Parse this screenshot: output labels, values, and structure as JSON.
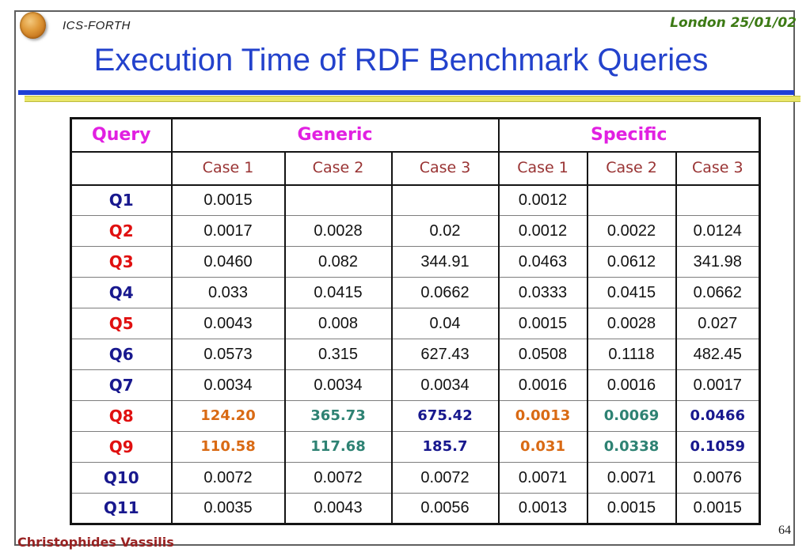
{
  "header": {
    "org": "ICS-FORTH",
    "date": "London 25/01/02",
    "title": "Execution Time of RDF Benchmark Queries"
  },
  "footer": {
    "author": "Christophides Vassilis",
    "page_number": "64"
  },
  "colors": {
    "title_blue": "#2342cc",
    "magenta": "#e120e1",
    "brown": "#993333",
    "navy": "#18188e",
    "red": "#e01010",
    "orange": "#d96a14",
    "teal": "#2e8273",
    "date_green": "#3c7a14",
    "footer_red": "#992222",
    "bar_blue": "#1f3fd4",
    "bar_yellow": "#e9e668"
  },
  "table": {
    "query_header": "Query",
    "group_headers": [
      "Generic",
      "Specific"
    ],
    "case_headers": [
      "Case 1",
      "Case 2",
      "Case 3",
      "Case 1",
      "Case 2",
      "Case 3"
    ],
    "rows": [
      {
        "label": "Q1",
        "label_color": "navy",
        "values": [
          "0.0015",
          "",
          "",
          "0.0012",
          "",
          ""
        ]
      },
      {
        "label": "Q2",
        "label_color": "red",
        "values": [
          "0.0017",
          "0.0028",
          "0.02",
          "0.0012",
          "0.0022",
          "0.0124"
        ]
      },
      {
        "label": "Q3",
        "label_color": "red",
        "values": [
          "0.0460",
          "0.082",
          "344.91",
          "0.0463",
          "0.0612",
          "341.98"
        ]
      },
      {
        "label": "Q4",
        "label_color": "navy",
        "values": [
          "0.033",
          "0.0415",
          "0.0662",
          "0.0333",
          "0.0415",
          "0.0662"
        ]
      },
      {
        "label": "Q5",
        "label_color": "red",
        "values": [
          "0.0043",
          "0.008",
          "0.04",
          "0.0015",
          "0.0028",
          "0.027"
        ]
      },
      {
        "label": "Q6",
        "label_color": "navy",
        "values": [
          "0.0573",
          "0.315",
          "627.43",
          "0.0508",
          "0.1118",
          "482.45"
        ]
      },
      {
        "label": "Q7",
        "label_color": "navy",
        "values": [
          "0.0034",
          "0.0034",
          "0.0034",
          "0.0016",
          "0.0016",
          "0.0017"
        ]
      },
      {
        "label": "Q8",
        "label_color": "red",
        "values": [
          "124.20",
          "365.73",
          "675.42",
          "0.0013",
          "0.0069",
          "0.0466"
        ],
        "value_colors": [
          "orange",
          "teal",
          "navy",
          "orange",
          "teal",
          "navy"
        ]
      },
      {
        "label": "Q9",
        "label_color": "red",
        "values": [
          "110.58",
          "117.68",
          "185.7",
          "0.031",
          "0.0338",
          "0.1059"
        ],
        "value_colors": [
          "orange",
          "teal",
          "navy",
          "orange",
          "teal",
          "navy"
        ]
      },
      {
        "label": "Q10",
        "label_color": "navy",
        "values": [
          "0.0072",
          "0.0072",
          "0.0072",
          "0.0071",
          "0.0071",
          "0.0076"
        ]
      },
      {
        "label": "Q11",
        "label_color": "navy",
        "values": [
          "0.0035",
          "0.0043",
          "0.0056",
          "0.0013",
          "0.0015",
          "0.0015"
        ]
      }
    ]
  }
}
